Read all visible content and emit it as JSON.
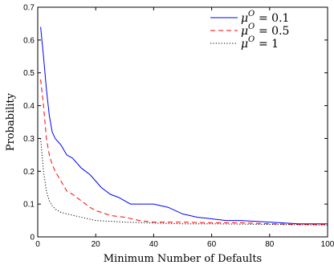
{
  "chart_data": {
    "type": "line",
    "xlabel": "Minimum Number of Defaults",
    "ylabel": "Probability",
    "xlim": [
      0,
      100
    ],
    "ylim": [
      0,
      0.7
    ],
    "x_ticks": [
      "0",
      "20",
      "40",
      "60",
      "80",
      "100"
    ],
    "y_ticks": [
      "0",
      "0.1",
      "0.2",
      "0.3",
      "0.4",
      "0.5",
      "0.6",
      "0.7"
    ],
    "grid": false,
    "legend_position": "top-right",
    "series": [
      {
        "name": "μ^O = 0.1",
        "legend_symbol": "μ",
        "legend_sup": "O",
        "legend_value": "= 0.1",
        "color": "#0000ff",
        "style": "solid",
        "x": [
          1,
          2,
          3,
          4,
          5,
          6,
          7,
          8,
          10,
          12,
          15,
          18,
          20,
          22,
          25,
          28,
          30,
          32,
          35,
          40,
          45,
          50,
          55,
          60,
          65,
          70,
          80,
          90,
          100
        ],
        "y": [
          0.64,
          0.55,
          0.45,
          0.37,
          0.32,
          0.3,
          0.29,
          0.28,
          0.25,
          0.24,
          0.21,
          0.19,
          0.17,
          0.15,
          0.13,
          0.12,
          0.11,
          0.1,
          0.1,
          0.1,
          0.09,
          0.07,
          0.06,
          0.055,
          0.05,
          0.05,
          0.045,
          0.04,
          0.04
        ]
      },
      {
        "name": "μ^O = 0.5",
        "legend_symbol": "μ",
        "legend_sup": "O",
        "legend_value": "= 0.5",
        "color": "#ff0000",
        "style": "dashed",
        "x": [
          1,
          2,
          3,
          4,
          5,
          6,
          8,
          10,
          12,
          15,
          18,
          20,
          22,
          25,
          30,
          35,
          40,
          50,
          60,
          70,
          80,
          90,
          100
        ],
        "y": [
          0.48,
          0.4,
          0.3,
          0.25,
          0.22,
          0.2,
          0.17,
          0.14,
          0.13,
          0.11,
          0.09,
          0.08,
          0.075,
          0.065,
          0.06,
          0.05,
          0.045,
          0.045,
          0.043,
          0.043,
          0.04,
          0.038,
          0.038
        ]
      },
      {
        "name": "μ^O = 1",
        "legend_symbol": "μ",
        "legend_sup": "O",
        "legend_value": "= 1",
        "color": "#000000",
        "style": "dotted",
        "x": [
          1,
          2,
          3,
          4,
          5,
          6,
          8,
          10,
          15,
          20,
          30,
          40,
          50,
          60,
          80,
          100
        ],
        "y": [
          0.3,
          0.2,
          0.14,
          0.11,
          0.095,
          0.085,
          0.075,
          0.07,
          0.06,
          0.05,
          0.045,
          0.042,
          0.04,
          0.04,
          0.038,
          0.036
        ]
      }
    ]
  }
}
